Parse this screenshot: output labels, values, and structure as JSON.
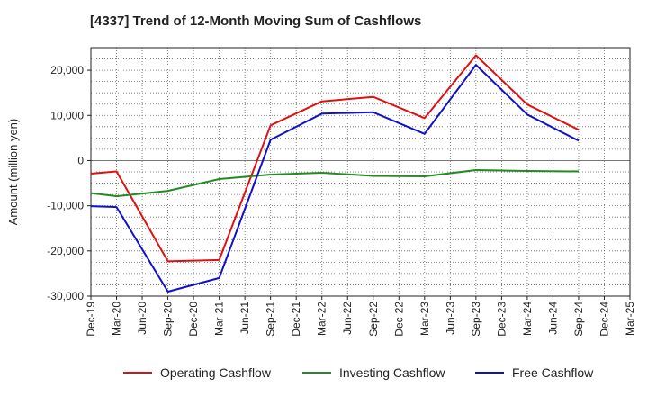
{
  "chart_data": {
    "type": "line",
    "title": "[4337]  Trend of 12-Month Moving Sum of Cashflows",
    "ylabel": "Amount (million yen)",
    "xlabel": "",
    "categories": [
      "Dec-19",
      "Mar-20",
      "Jun-20",
      "Sep-20",
      "Dec-20",
      "Mar-21",
      "Jun-21",
      "Sep-21",
      "Dec-21",
      "Mar-22",
      "Jun-22",
      "Sep-22",
      "Dec-22",
      "Mar-23",
      "Jun-23",
      "Sep-23",
      "Dec-23",
      "Mar-24",
      "Jun-24",
      "Sep-24",
      "Dec-24",
      "Mar-25"
    ],
    "ylim": [
      -30000,
      25000
    ],
    "yticks": [
      -30000,
      -20000,
      -10000,
      0,
      10000,
      20000
    ],
    "ytick_labels": [
      "-30,000",
      "-20,000",
      "-10,000",
      "0",
      "10,000",
      "20,000"
    ],
    "grid": true,
    "legend_position": "bottom",
    "series": [
      {
        "name": "Operating Cashflow",
        "color": "#e01010",
        "values": [
          -2900,
          -2400,
          null,
          -22300,
          null,
          -22000,
          null,
          7800,
          null,
          13100,
          null,
          14100,
          null,
          9400,
          null,
          23300,
          null,
          12400,
          null,
          6800,
          null,
          null
        ]
      },
      {
        "name": "Investing Cashflow",
        "color": "#228b22",
        "values": [
          -7200,
          -7900,
          null,
          -6700,
          null,
          -4100,
          null,
          -3100,
          null,
          -2700,
          null,
          -3400,
          null,
          -3500,
          null,
          -2100,
          null,
          -2300,
          null,
          -2400,
          null,
          null
        ]
      },
      {
        "name": "Free Cashflow",
        "color": "#1010cc",
        "values": [
          -10100,
          -10300,
          null,
          -29000,
          null,
          -26000,
          null,
          4600,
          null,
          10400,
          null,
          10700,
          null,
          5900,
          null,
          21200,
          null,
          10200,
          null,
          4400,
          null,
          null
        ]
      }
    ]
  }
}
